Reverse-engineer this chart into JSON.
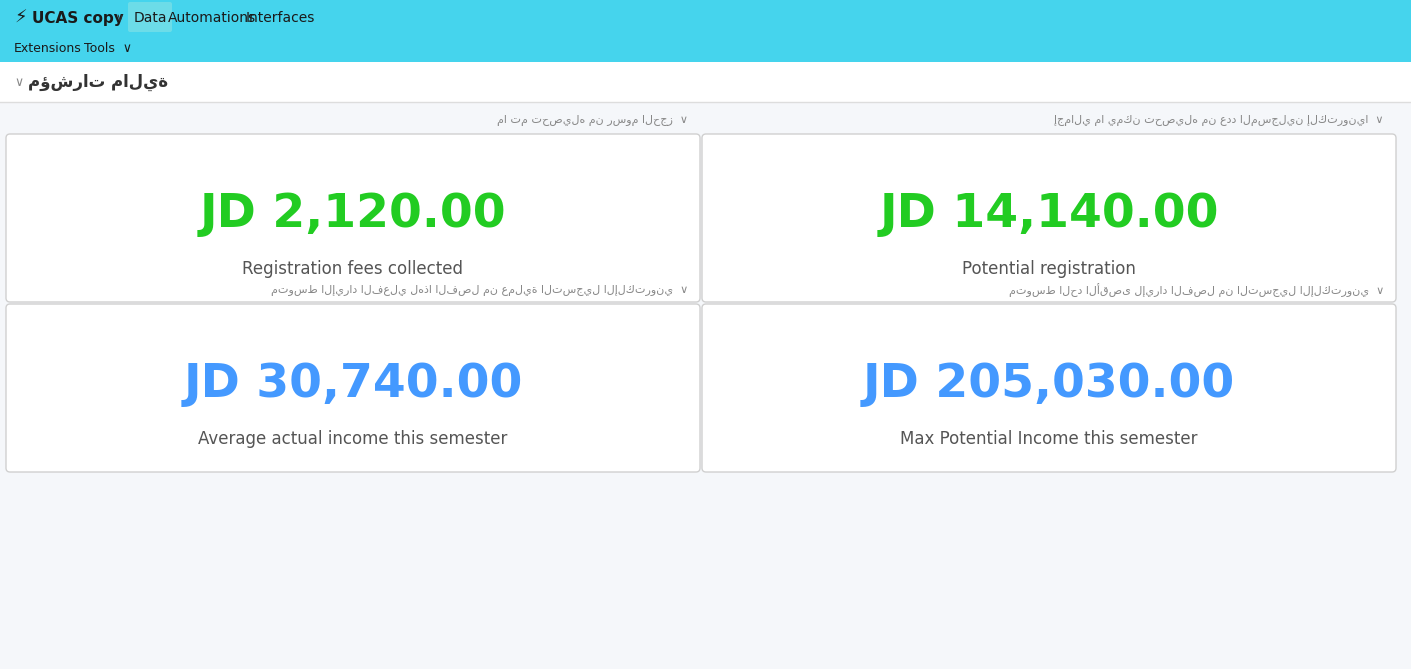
{
  "top_bar_color": "#45D4ED",
  "second_bar_color": "#45D4ED",
  "page_bg": "#F0F4F8",
  "white_bg": "#FFFFFF",
  "app_name": "UCAS copy",
  "nav_items": [
    "Data",
    "Automations",
    "Interfaces"
  ],
  "section_title_ar": "مؤشرات مالية",
  "card_bg": "#FFFFFF",
  "cards": [
    {
      "value": "JD 2,120.00",
      "label": "Registration fees collected",
      "label_ar": "ما تم تحصيله من رسوم الحجز",
      "value_color": "#22CC22",
      "row": 0,
      "col": 0
    },
    {
      "value": "JD 14,140.00",
      "label": "Potential registration",
      "label_ar": "إجمالي ما يمكن تحصيله من عدد المسجلين إلكترونيا",
      "value_color": "#22CC22",
      "row": 0,
      "col": 1
    },
    {
      "value": "JD 30,740.00",
      "label": "Average actual income this semester",
      "label_ar": "متوسط الإيراد الفعلي لهذا الفصل من عملية التسجيل الإلكتروني",
      "value_color": "#4499FF",
      "row": 1,
      "col": 0
    },
    {
      "value": "JD 205,030.00",
      "label": "Max Potential Income this semester",
      "label_ar": "متوسط الحد الأقصى لإيراد الفصل من التسجيل الإلكتروني",
      "value_color": "#4499FF",
      "row": 1,
      "col": 1
    }
  ]
}
